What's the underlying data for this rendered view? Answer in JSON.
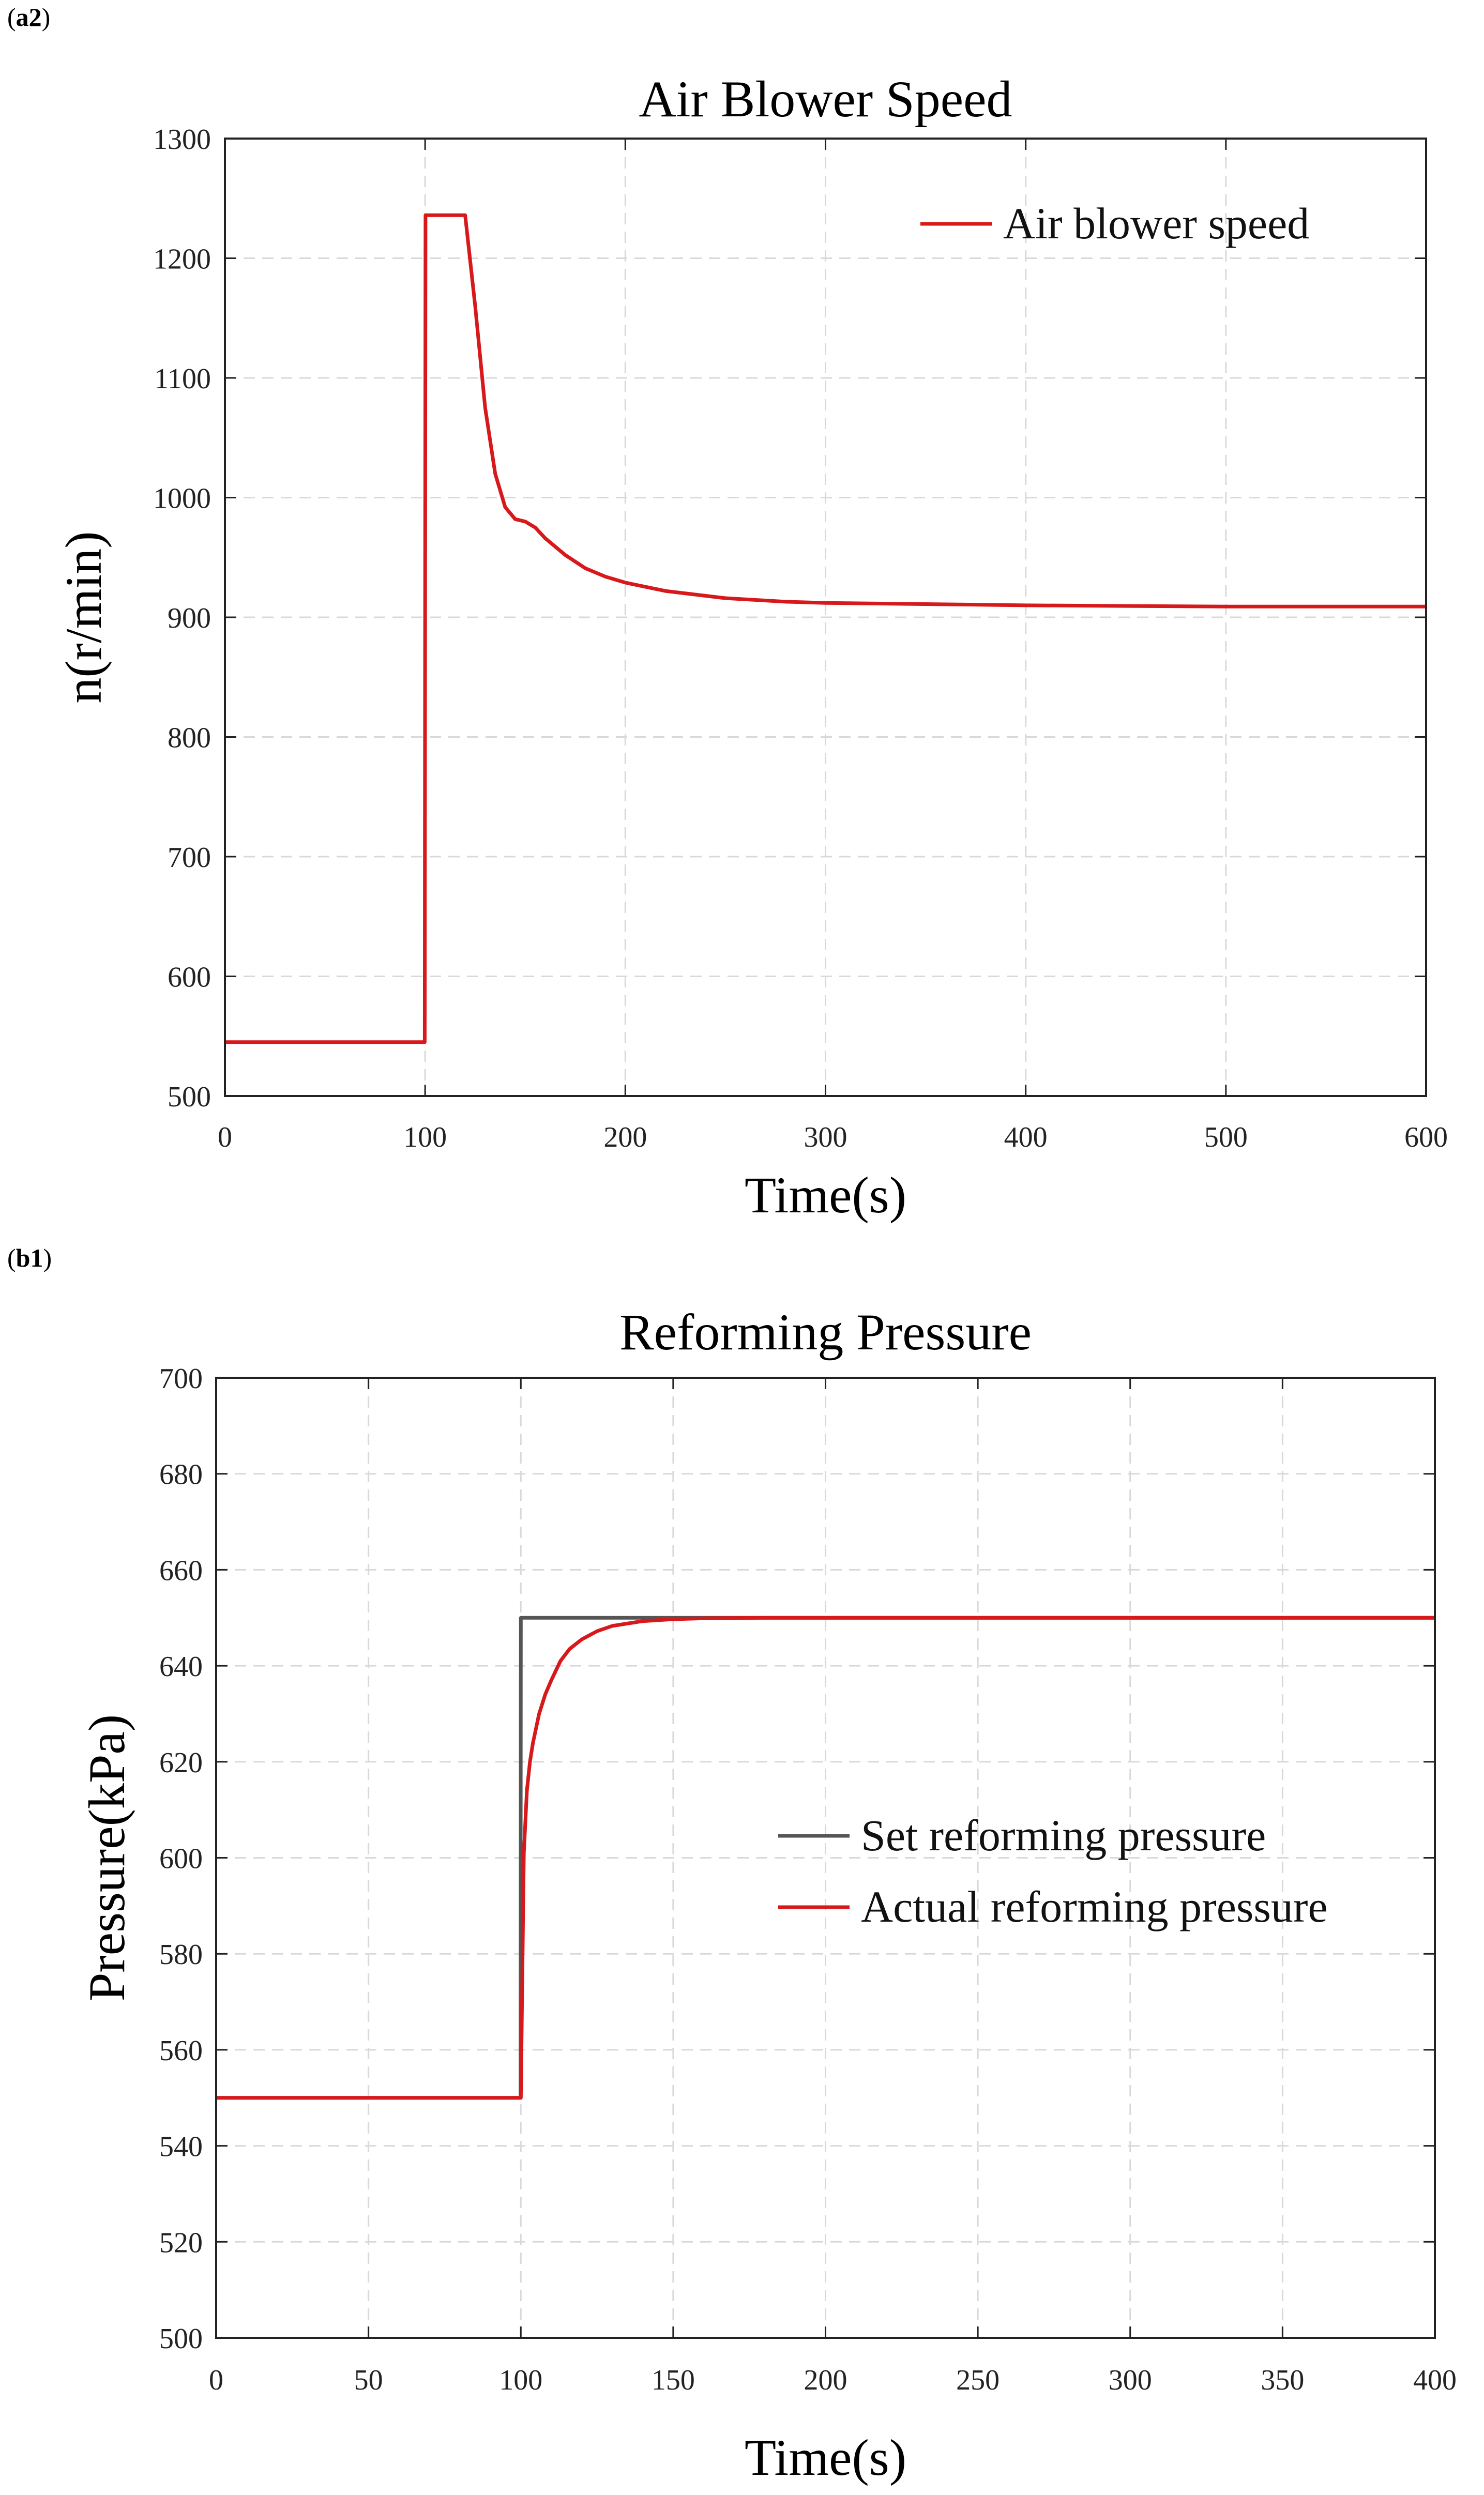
{
  "panels": [
    {
      "prefix": "(",
      "label": "a2",
      "suffix": ")"
    },
    {
      "prefix": "(",
      "label": "b1",
      "suffix": ")"
    }
  ],
  "chart_data": [
    {
      "type": "line",
      "title": "Air Blower Speed",
      "xlabel": "Time(s)",
      "ylabel": "n(r/min)",
      "xlim": [
        0,
        600
      ],
      "ylim": [
        500,
        1300
      ],
      "xticks": [
        0,
        100,
        200,
        300,
        400,
        500,
        600
      ],
      "yticks": [
        500,
        600,
        700,
        800,
        900,
        1000,
        1100,
        1200,
        1300
      ],
      "grid": true,
      "legend_position": "top-right",
      "series": [
        {
          "name": "Air blower speed",
          "color": "#d7191c",
          "x": [
            0,
            99.8,
            100.2,
            120,
            125,
            130,
            135,
            140,
            145,
            150,
            155,
            160,
            170,
            180,
            190,
            200,
            220,
            250,
            280,
            300,
            350,
            400,
            500,
            600
          ],
          "y": [
            545,
            545,
            1236,
            1236,
            1160,
            1075,
            1020,
            992,
            982,
            980,
            975,
            966,
            952,
            941,
            934,
            929,
            922,
            916,
            913,
            912,
            911,
            910,
            909,
            909
          ]
        }
      ]
    },
    {
      "type": "line",
      "title": "Reforming Pressure",
      "xlabel": "Time(s)",
      "ylabel": "Pressure(kPa)",
      "xlim": [
        0,
        400
      ],
      "ylim": [
        500,
        700
      ],
      "xticks": [
        0,
        50,
        100,
        150,
        200,
        250,
        300,
        350,
        400
      ],
      "yticks": [
        500,
        520,
        540,
        560,
        580,
        600,
        620,
        640,
        660,
        680,
        700
      ],
      "grid": true,
      "legend_position": "right",
      "series": [
        {
          "name": "Set reforming pressure",
          "color": "#555555",
          "x": [
            0,
            99.9,
            100,
            400
          ],
          "y": [
            550,
            550,
            650,
            650
          ]
        },
        {
          "name": "Actual reforming pressure",
          "color": "#d7191c",
          "x": [
            0,
            99.9,
            100,
            101,
            102,
            103,
            104,
            106,
            108,
            110,
            113,
            116,
            120,
            125,
            130,
            140,
            150,
            160,
            180,
            200,
            250,
            300,
            400
          ],
          "y": [
            550,
            550,
            550,
            601,
            614,
            620,
            624,
            630,
            634,
            637,
            641,
            643.5,
            645.5,
            647.2,
            648.3,
            649.3,
            649.7,
            649.9,
            650,
            650,
            650,
            650,
            650
          ]
        }
      ]
    }
  ]
}
